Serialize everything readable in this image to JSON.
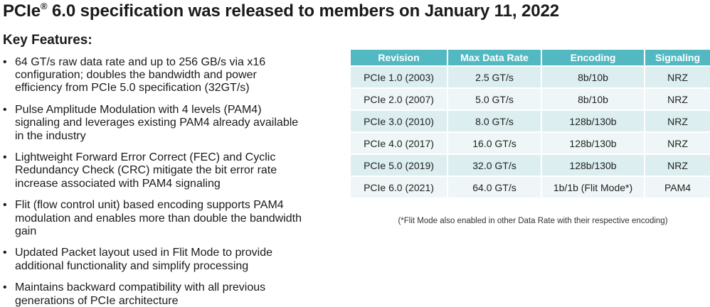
{
  "title": {
    "prefix": "PCIe",
    "superscript": "®",
    "rest": " 6.0 specification was released to members on January 11, 2022"
  },
  "heading": "Key Features:",
  "bullet_glyph": "•",
  "features": [
    "64 GT/s raw data rate and up to 256 GB/s via x16 configuration; doubles the bandwidth and power efficiency from PCIe 5.0 specification (32GT/s)",
    "Pulse Amplitude Modulation with 4 levels (PAM4) signaling and leverages existing PAM4 already available in the industry",
    "Lightweight Forward Error Correct (FEC) and Cyclic Redundancy Check (CRC) mitigate the bit error rate increase associated with PAM4 signaling",
    "Flit (flow control unit) based encoding supports PAM4 modulation and enables more than double the bandwidth gain",
    "Updated Packet layout used in Flit Mode to provide additional functionality and simplify processing",
    "Maintains backward compatibility with all previous generations of PCIe architecture"
  ],
  "table": {
    "headers": [
      "Revision",
      "Max Data Rate",
      "Encoding",
      "Signaling"
    ],
    "rows": [
      [
        "PCIe 1.0 (2003)",
        "2.5 GT/s",
        "8b/10b",
        "NRZ"
      ],
      [
        "PCIe 2.0 (2007)",
        "5.0 GT/s",
        "8b/10b",
        "NRZ"
      ],
      [
        "PCIe 3.0 (2010)",
        "8.0 GT/s",
        "128b/130b",
        "NRZ"
      ],
      [
        "PCIe 4.0 (2017)",
        "16.0 GT/s",
        "128b/130b",
        "NRZ"
      ],
      [
        "PCIe 5.0 (2019)",
        "32.0 GT/s",
        "128b/130b",
        "NRZ"
      ],
      [
        "PCIe 6.0 (2021)",
        "64.0 GT/s",
        "1b/1b (Flit Mode*)",
        "PAM4"
      ]
    ]
  },
  "footnote": "(*Flit Mode also enabled in other Data Rate with their respective encoding)",
  "colors": {
    "header_bg": "#52b9c2",
    "row_odd_bg": "#dceef0",
    "row_even_bg": "#eef6f7"
  }
}
